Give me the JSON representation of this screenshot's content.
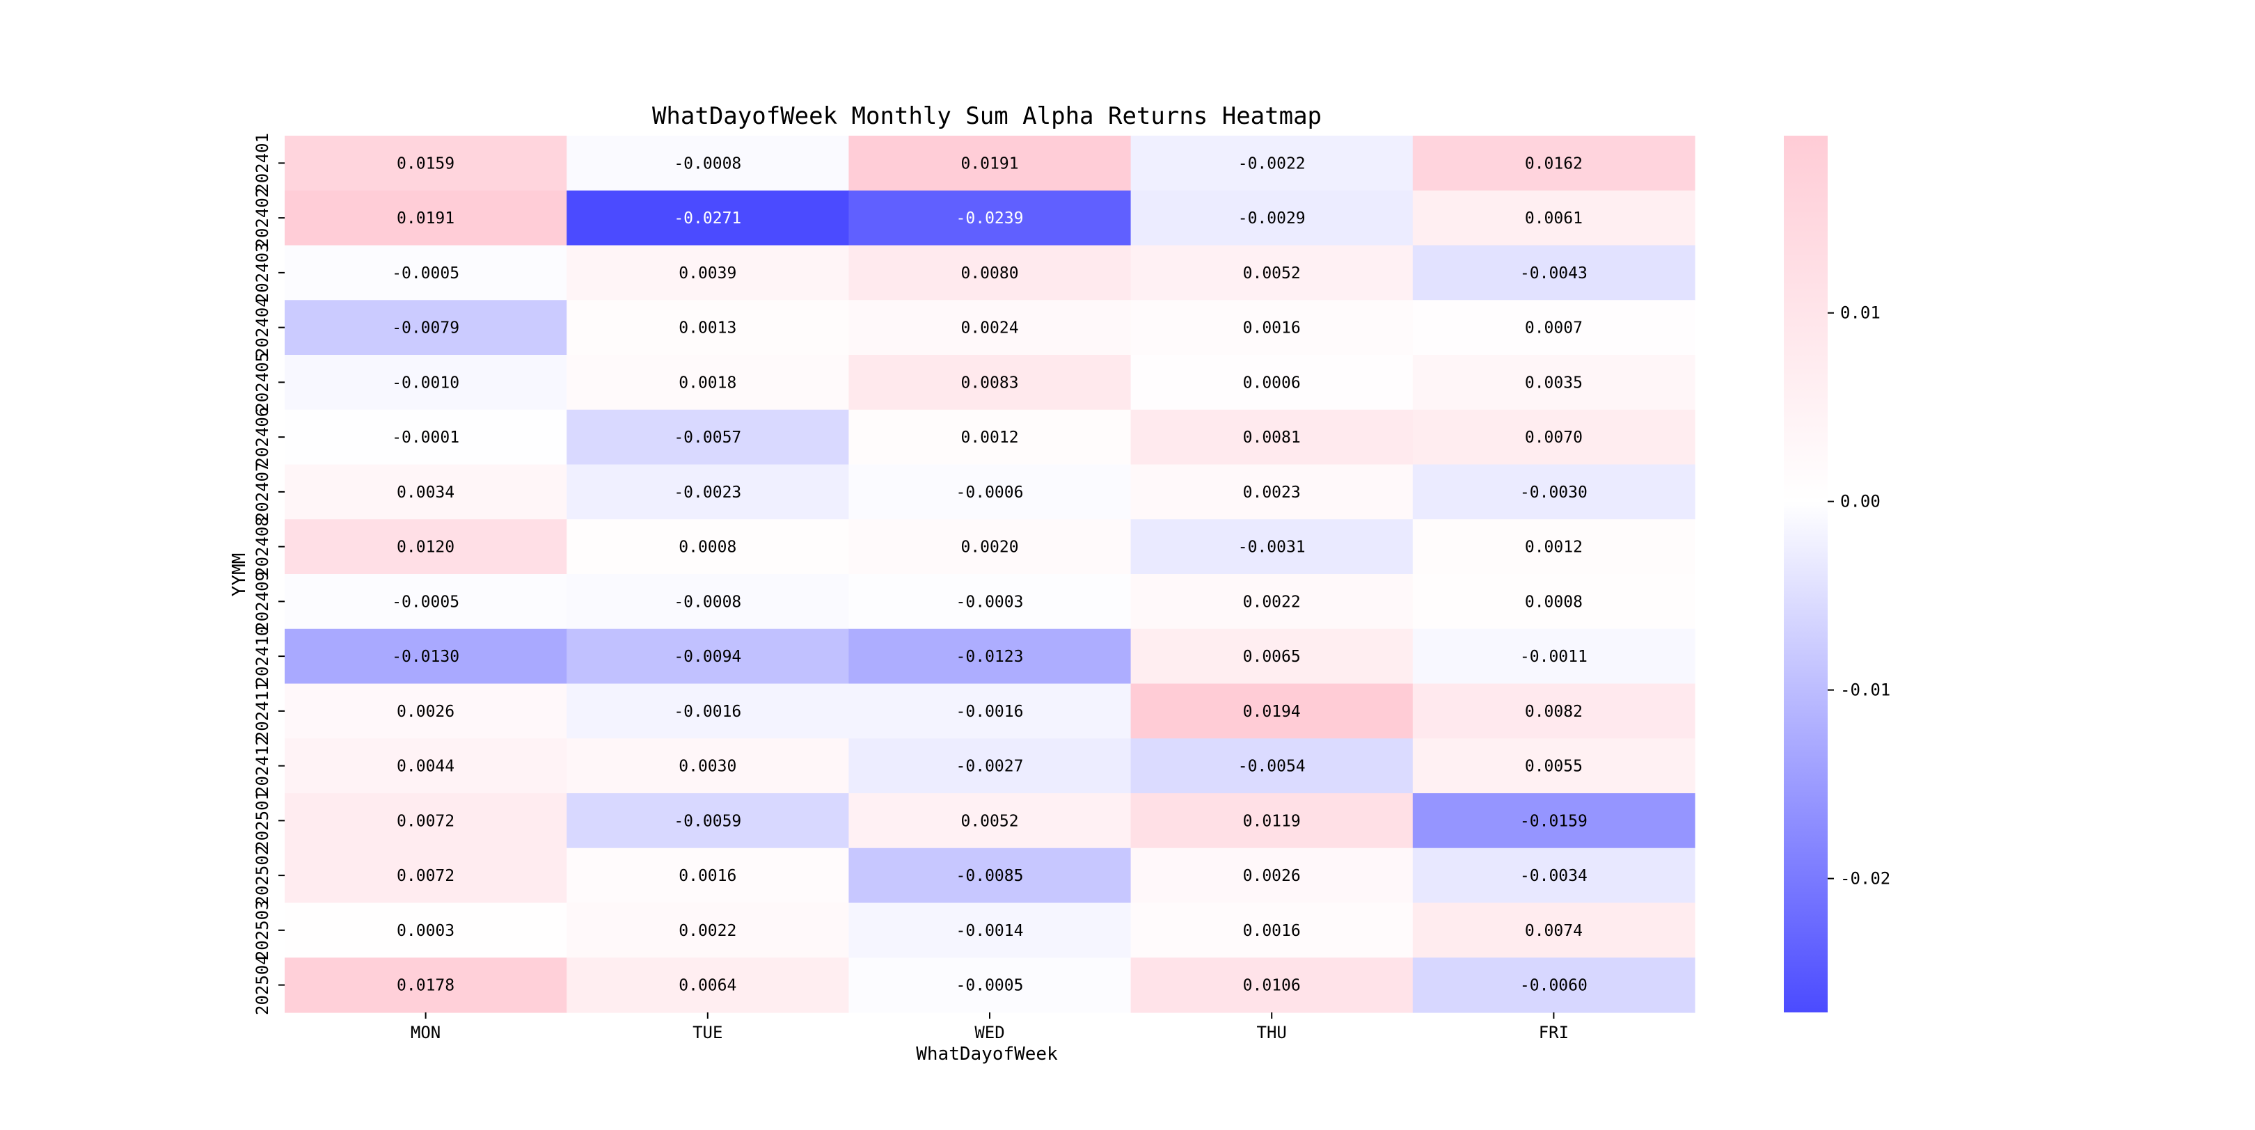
{
  "chart_data": {
    "type": "heatmap",
    "title": "WhatDayofWeek Monthly Sum Alpha Returns Heatmap",
    "xlabel": "WhatDayofWeek",
    "ylabel": "YYMM",
    "x": [
      "MON",
      "TUE",
      "WED",
      "THU",
      "FRI"
    ],
    "y": [
      "202401",
      "202402",
      "202403",
      "202404",
      "202405",
      "202406",
      "202407",
      "202408",
      "202409",
      "202410",
      "202411",
      "202412",
      "202501",
      "202502",
      "202503",
      "202504"
    ],
    "values": [
      [
        0.0159,
        -0.0008,
        0.0191,
        -0.0022,
        0.0162
      ],
      [
        0.0191,
        -0.0271,
        -0.0239,
        -0.0029,
        0.0061
      ],
      [
        -0.0005,
        0.0039,
        0.008,
        0.0052,
        -0.0043
      ],
      [
        -0.0079,
        0.0013,
        0.0024,
        0.0016,
        0.0007
      ],
      [
        -0.001,
        0.0018,
        0.0083,
        0.0006,
        0.0035
      ],
      [
        -0.0001,
        -0.0057,
        0.0012,
        0.0081,
        0.007
      ],
      [
        0.0034,
        -0.0023,
        -0.0006,
        0.0023,
        -0.003
      ],
      [
        0.012,
        0.0008,
        0.002,
        -0.0031,
        0.0012
      ],
      [
        -0.0005,
        -0.0008,
        -0.0003,
        0.0022,
        0.0008
      ],
      [
        -0.013,
        -0.0094,
        -0.0123,
        0.0065,
        -0.0011
      ],
      [
        0.0026,
        -0.0016,
        -0.0016,
        0.0194,
        0.0082
      ],
      [
        0.0044,
        0.003,
        -0.0027,
        -0.0054,
        0.0055
      ],
      [
        0.0072,
        -0.0059,
        0.0052,
        0.0119,
        -0.0159
      ],
      [
        0.0072,
        0.0016,
        -0.0085,
        0.0026,
        -0.0034
      ],
      [
        0.0003,
        0.0022,
        -0.0014,
        0.0016,
        0.0074
      ],
      [
        0.0178,
        0.0064,
        -0.0005,
        0.0106,
        -0.006
      ]
    ],
    "value_labels": [
      [
        "0.0159",
        "-0.0008",
        "0.0191",
        "-0.0022",
        "0.0162"
      ],
      [
        "0.0191",
        "-0.0271",
        "-0.0239",
        "-0.0029",
        "0.0061"
      ],
      [
        "-0.0005",
        "0.0039",
        "0.0080",
        "0.0052",
        "-0.0043"
      ],
      [
        "-0.0079",
        "0.0013",
        "0.0024",
        "0.0016",
        "0.0007"
      ],
      [
        "-0.0010",
        "0.0018",
        "0.0083",
        "0.0006",
        "0.0035"
      ],
      [
        "-0.0001",
        "-0.0057",
        "0.0012",
        "0.0081",
        "0.0070"
      ],
      [
        "0.0034",
        "-0.0023",
        "-0.0006",
        "0.0023",
        "-0.0030"
      ],
      [
        "0.0120",
        "0.0008",
        "0.0020",
        "-0.0031",
        "0.0012"
      ],
      [
        "-0.0005",
        "-0.0008",
        "-0.0003",
        "0.0022",
        "0.0008"
      ],
      [
        "-0.0130",
        "-0.0094",
        "-0.0123",
        "0.0065",
        "-0.0011"
      ],
      [
        "0.0026",
        "-0.0016",
        "-0.0016",
        "0.0194",
        "0.0082"
      ],
      [
        "0.0044",
        "0.0030",
        "-0.0027",
        "-0.0054",
        "0.0055"
      ],
      [
        "0.0072",
        "-0.0059",
        "0.0052",
        "0.0119",
        "-0.0159"
      ],
      [
        "0.0072",
        "0.0016",
        "-0.0085",
        "0.0026",
        "-0.0034"
      ],
      [
        "0.0003",
        "0.0022",
        "-0.0014",
        "0.0016",
        "0.0074"
      ],
      [
        "0.0178",
        "0.0064",
        "-0.0005",
        "0.0106",
        "-0.0060"
      ]
    ],
    "colorbar": {
      "vmin": -0.0271,
      "vmax": 0.0194,
      "ticks": [
        -0.02,
        -0.01,
        0.0,
        0.01
      ],
      "tick_labels": [
        "-0.02",
        "-0.01",
        "0.00",
        "0.01"
      ]
    },
    "colors": {
      "negative": "#4b4bff",
      "center": "#ffffff",
      "positive": "#ffccd6"
    },
    "grid": false,
    "legend": "colorbar-right"
  }
}
